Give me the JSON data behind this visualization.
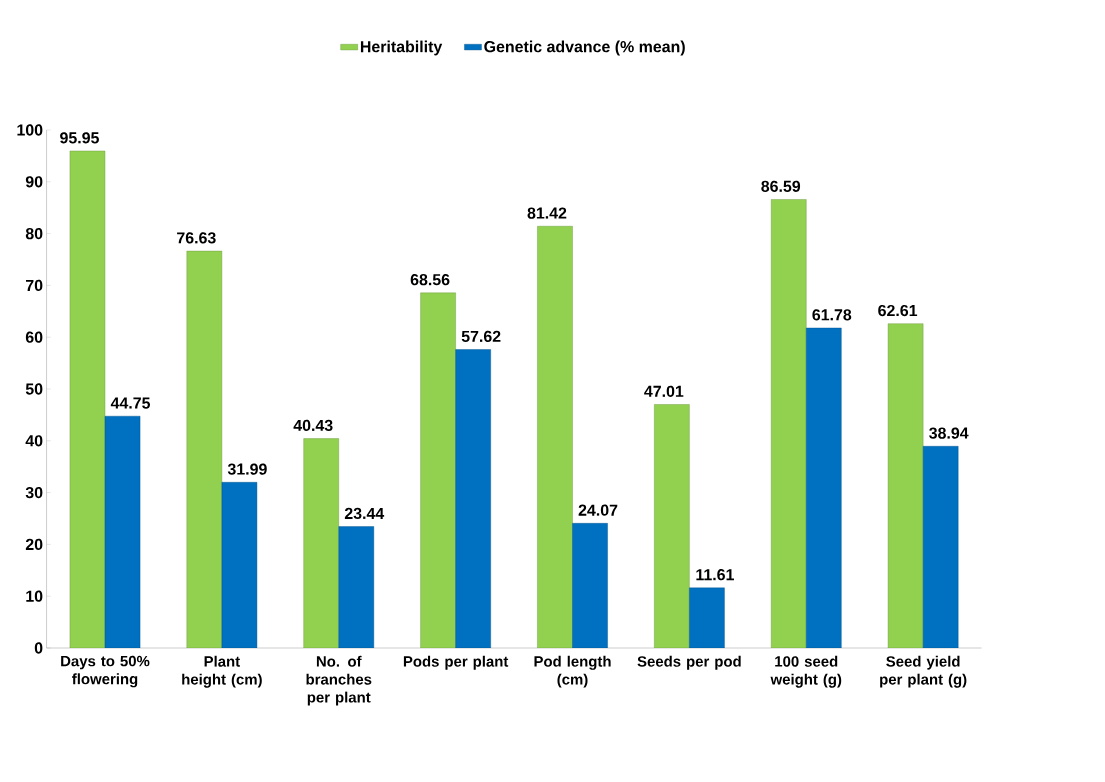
{
  "chart_data": {
    "type": "bar",
    "categories": [
      "Days to 50% flowering",
      "Plant height (cm)",
      "No. of branches per plant",
      "Pods per plant",
      "Pod length (cm)",
      "Seeds per pod",
      "100 seed weight (g)",
      "Seed yield per plant (g)"
    ],
    "series": [
      {
        "name": "Heritability",
        "color": "#92d050",
        "values": [
          95.95,
          76.63,
          40.43,
          68.56,
          81.42,
          47.01,
          86.59,
          62.61
        ]
      },
      {
        "name": "Genetic advance (% mean)",
        "color": "#0070c0",
        "values": [
          44.75,
          31.99,
          23.44,
          57.62,
          24.07,
          11.61,
          61.78,
          38.94
        ]
      }
    ],
    "ylim": [
      0,
      100
    ],
    "yticks": [
      0,
      10,
      20,
      30,
      40,
      50,
      60,
      70,
      80,
      90,
      100
    ],
    "data_labels": true,
    "legend": "top"
  }
}
